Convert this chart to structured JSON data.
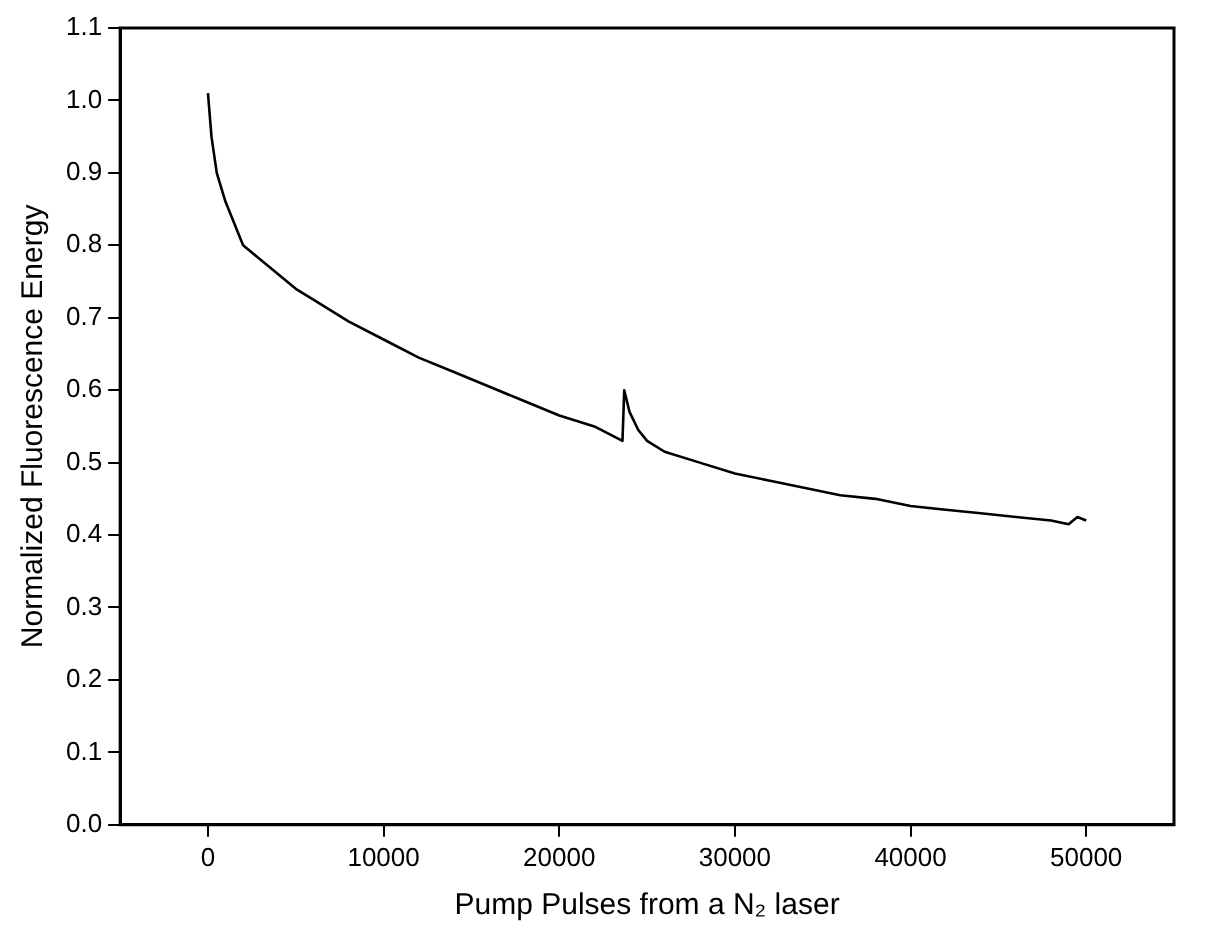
{
  "chart_data": {
    "type": "line",
    "xlabel": "Pump Pulses from a N₂ laser",
    "ylabel": "Normalized Fluorescence Energy",
    "xlim": [
      -5000,
      55000
    ],
    "xticks": [
      0,
      10000,
      20000,
      30000,
      40000,
      50000
    ],
    "ylim": [
      0,
      1.1
    ],
    "yticks": [
      {
        "value": 0,
        "label": "0.0"
      },
      0.1,
      0.2,
      0.3,
      0.4,
      0.5,
      0.6,
      0.7,
      0.8,
      0.9,
      {
        "value": 1,
        "label": "1.0"
      },
      1.1
    ],
    "grid": false,
    "legend": false,
    "marker": "none",
    "line_style": "solid",
    "series": [
      {
        "color": "#000000",
        "x": [
          0,
          200,
          500,
          1000,
          2000,
          3000,
          4000,
          5000,
          6000,
          8000,
          10000,
          12000,
          14000,
          16000,
          18000,
          20000,
          22000,
          23600,
          23700,
          24000,
          24500,
          25000,
          26000,
          28000,
          30000,
          32000,
          34000,
          36000,
          38000,
          40000,
          42000,
          44000,
          46000,
          48000,
          49000,
          49500,
          50000
        ],
        "values": [
          1.01,
          0.95,
          0.9,
          0.86,
          0.8,
          0.78,
          0.76,
          0.74,
          0.725,
          0.695,
          0.67,
          0.645,
          0.625,
          0.605,
          0.585,
          0.565,
          0.55,
          0.53,
          0.6,
          0.57,
          0.545,
          0.53,
          0.515,
          0.5,
          0.485,
          0.475,
          0.465,
          0.455,
          0.45,
          0.44,
          0.435,
          0.43,
          0.425,
          0.42,
          0.415,
          0.425,
          0.42
        ]
      }
    ]
  }
}
